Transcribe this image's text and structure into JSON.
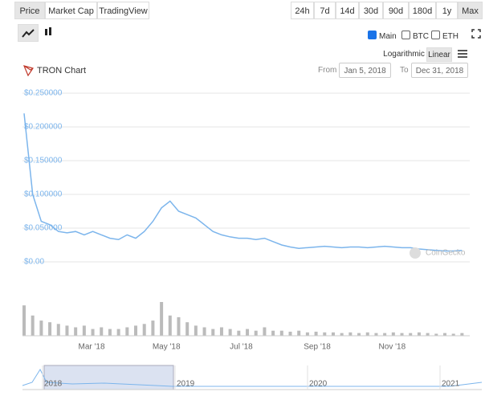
{
  "tabs": {
    "items": [
      "Price",
      "Market Cap",
      "TradingView"
    ],
    "active": 0
  },
  "ranges": {
    "items": [
      "24h",
      "7d",
      "14d",
      "30d",
      "90d",
      "180d",
      "1y",
      "Max"
    ],
    "active": 7
  },
  "options": [
    {
      "label": "Main",
      "checked": true
    },
    {
      "label": "BTC",
      "checked": false
    },
    {
      "label": "ETH",
      "checked": false
    }
  ],
  "scale": {
    "items": [
      "Logarithmic",
      "Linear"
    ],
    "active": 1
  },
  "chart_data": {
    "type": "line",
    "title": "TRON Chart",
    "from_label": "From",
    "from": "Jan 5, 2018",
    "to_label": "To",
    "to": "Dec 31, 2018",
    "watermark": "CoinGecko",
    "categories": [
      null,
      null,
      null,
      null,
      null,
      null,
      null,
      null,
      null,
      null,
      null,
      null,
      null,
      null,
      null,
      null,
      null,
      null,
      null,
      null,
      null,
      null,
      null,
      null,
      null,
      null,
      null,
      null,
      null,
      null,
      null,
      null,
      null,
      null,
      null,
      null,
      null,
      null,
      null,
      null,
      null,
      null,
      null,
      null,
      null,
      null,
      null,
      null,
      null,
      null,
      null,
      null
    ],
    "series": [
      {
        "name": "Main",
        "color": "#7cb5ec",
        "values": [
          0.22,
          0.1,
          0.06,
          0.055,
          0.045,
          0.043,
          0.045,
          0.04,
          0.045,
          0.04,
          0.035,
          0.033,
          0.04,
          0.035,
          0.045,
          0.06,
          0.08,
          0.09,
          0.075,
          0.07,
          0.065,
          0.055,
          0.045,
          0.04,
          0.037,
          0.035,
          0.035,
          0.033,
          0.035,
          0.03,
          0.025,
          0.022,
          0.02,
          0.021,
          0.022,
          0.023,
          0.022,
          0.021,
          0.022,
          0.022,
          0.021,
          0.022,
          0.023,
          0.022,
          0.021,
          0.021,
          0.019,
          0.018,
          0.017,
          0.016,
          0.016,
          0.017
        ]
      }
    ],
    "volume": {
      "color": "#bbbbbb",
      "values": [
        90,
        60,
        45,
        40,
        35,
        30,
        25,
        30,
        20,
        25,
        20,
        20,
        25,
        30,
        35,
        45,
        100,
        60,
        55,
        40,
        30,
        25,
        20,
        25,
        20,
        15,
        20,
        15,
        25,
        15,
        15,
        12,
        15,
        10,
        12,
        10,
        10,
        8,
        10,
        8,
        10,
        8,
        8,
        10,
        8,
        8,
        10,
        8,
        6,
        8,
        6,
        8
      ]
    },
    "xlim": [
      0,
      51.9
    ],
    "xticks": [
      {
        "value": 7.86,
        "label": "Mar '18"
      },
      {
        "value": 16.57,
        "label": "May '18"
      },
      {
        "value": 25.29,
        "label": "Jul '18"
      },
      {
        "value": 34.14,
        "label": "Sep '18"
      },
      {
        "value": 42.86,
        "label": "Nov '18"
      }
    ],
    "ylim": [
      0,
      0.25
    ],
    "yticks": [
      {
        "value": 0.25,
        "label": "$0.250000"
      },
      {
        "value": 0.2,
        "label": "$0.200000"
      },
      {
        "value": 0.15,
        "label": "$0.150000"
      },
      {
        "value": 0.1,
        "label": "$0.100000"
      },
      {
        "value": 0.05,
        "label": "$0.050000"
      },
      {
        "value": 0,
        "label": "$0.00"
      }
    ],
    "grid": true,
    "navigator_labels": [
      "2018",
      "2019",
      "2020",
      "2021"
    ]
  }
}
